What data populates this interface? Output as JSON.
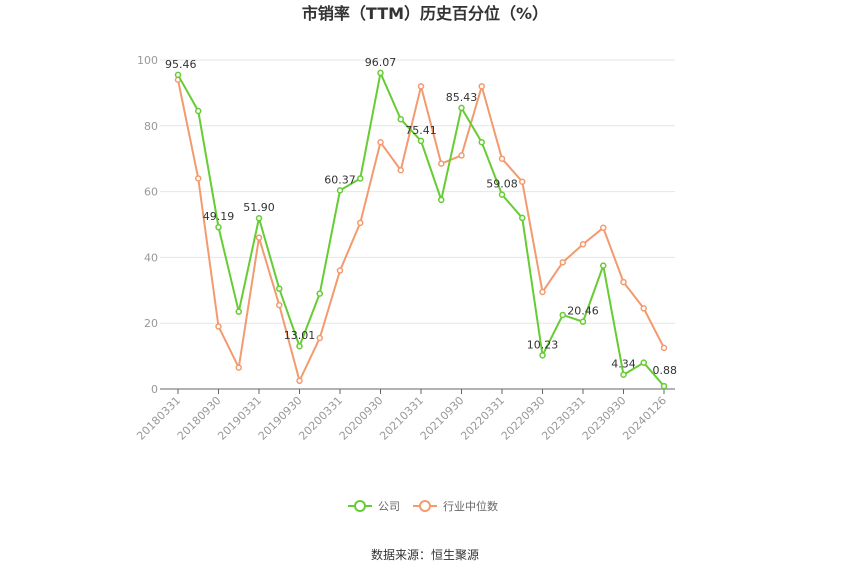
{
  "chart_data": {
    "type": "line",
    "title": "市销率（TTM）历史百分位（%）",
    "source": "数据来源：恒生聚源",
    "xlabel": "",
    "ylabel": "",
    "ylim": [
      0,
      100
    ],
    "yticks": [
      "0",
      "20",
      "40",
      "60",
      "80",
      "100"
    ],
    "grid": true,
    "legend_position": "bottom",
    "tick_labels": [
      "20180331",
      "20180930",
      "20190331",
      "20190930",
      "20200331",
      "20200930",
      "20210331",
      "20210930",
      "20220331",
      "20220930",
      "20230331",
      "20230930",
      "20240126"
    ],
    "series": [
      {
        "name": "公司",
        "color": "#66cc33",
        "values": [
          95.46,
          84.5,
          49.19,
          23.5,
          51.9,
          30.5,
          13.01,
          29.0,
          60.37,
          64.0,
          96.07,
          82.0,
          75.41,
          57.5,
          85.43,
          75.0,
          59.08,
          52.0,
          10.23,
          22.5,
          20.46,
          37.5,
          4.34,
          8.0,
          0.88
        ],
        "labels": [
          "95.46",
          "",
          "49.19",
          "",
          "51.90",
          "",
          "13.01",
          "",
          "60.37",
          "",
          "96.07",
          "",
          "75.41",
          "",
          "85.43",
          "",
          "59.08",
          "",
          "10.23",
          "",
          "20.46",
          "",
          "4.34",
          "",
          "0.88"
        ]
      },
      {
        "name": "行业中位数",
        "color": "#f39a6e",
        "values": [
          94.0,
          64.0,
          19.0,
          6.5,
          46.0,
          25.5,
          2.5,
          15.5,
          36.0,
          50.5,
          75.0,
          66.5,
          92.0,
          68.5,
          71.0,
          92.0,
          70.0,
          63.0,
          29.5,
          38.5,
          44.0,
          49.0,
          32.5,
          24.5,
          12.5
        ]
      }
    ]
  }
}
